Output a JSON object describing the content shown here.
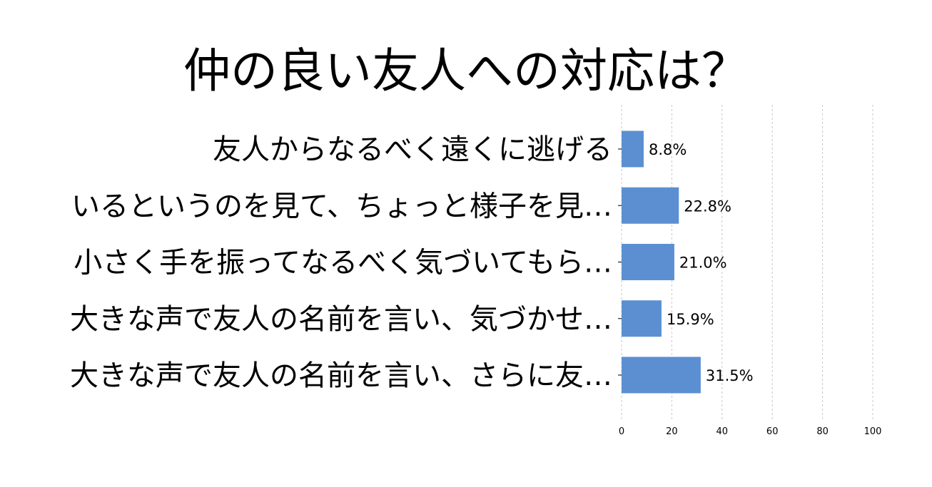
{
  "chart_data": {
    "type": "bar",
    "orientation": "horizontal",
    "title": "仲の良い友人への対応は？",
    "xlabel": "",
    "ylabel": "",
    "categories": [
      "友人からなるべく遠くに逃げる",
      "いるというのを見て、ちょっと様子を見…",
      "小さく手を振ってなるべく気づいてもら…",
      "大きな声で友人の名前を言い、気づかせ…",
      "大きな声で友人の名前を言い、さらに友…"
    ],
    "values": [
      8.8,
      22.8,
      21.0,
      15.9,
      31.5
    ],
    "value_labels": [
      "8.8%",
      "22.8%",
      "21.0%",
      "15.9%",
      "31.5%"
    ],
    "xlim": [
      0,
      100
    ],
    "xticks": [
      0,
      20,
      40,
      60,
      80,
      100
    ],
    "xtick_labels": [
      "0",
      "20",
      "40",
      "60",
      "80",
      "100"
    ],
    "grid": "vertical dashed",
    "bar_color": "#5b8fd2",
    "grid_color": "#c8c8c8"
  }
}
